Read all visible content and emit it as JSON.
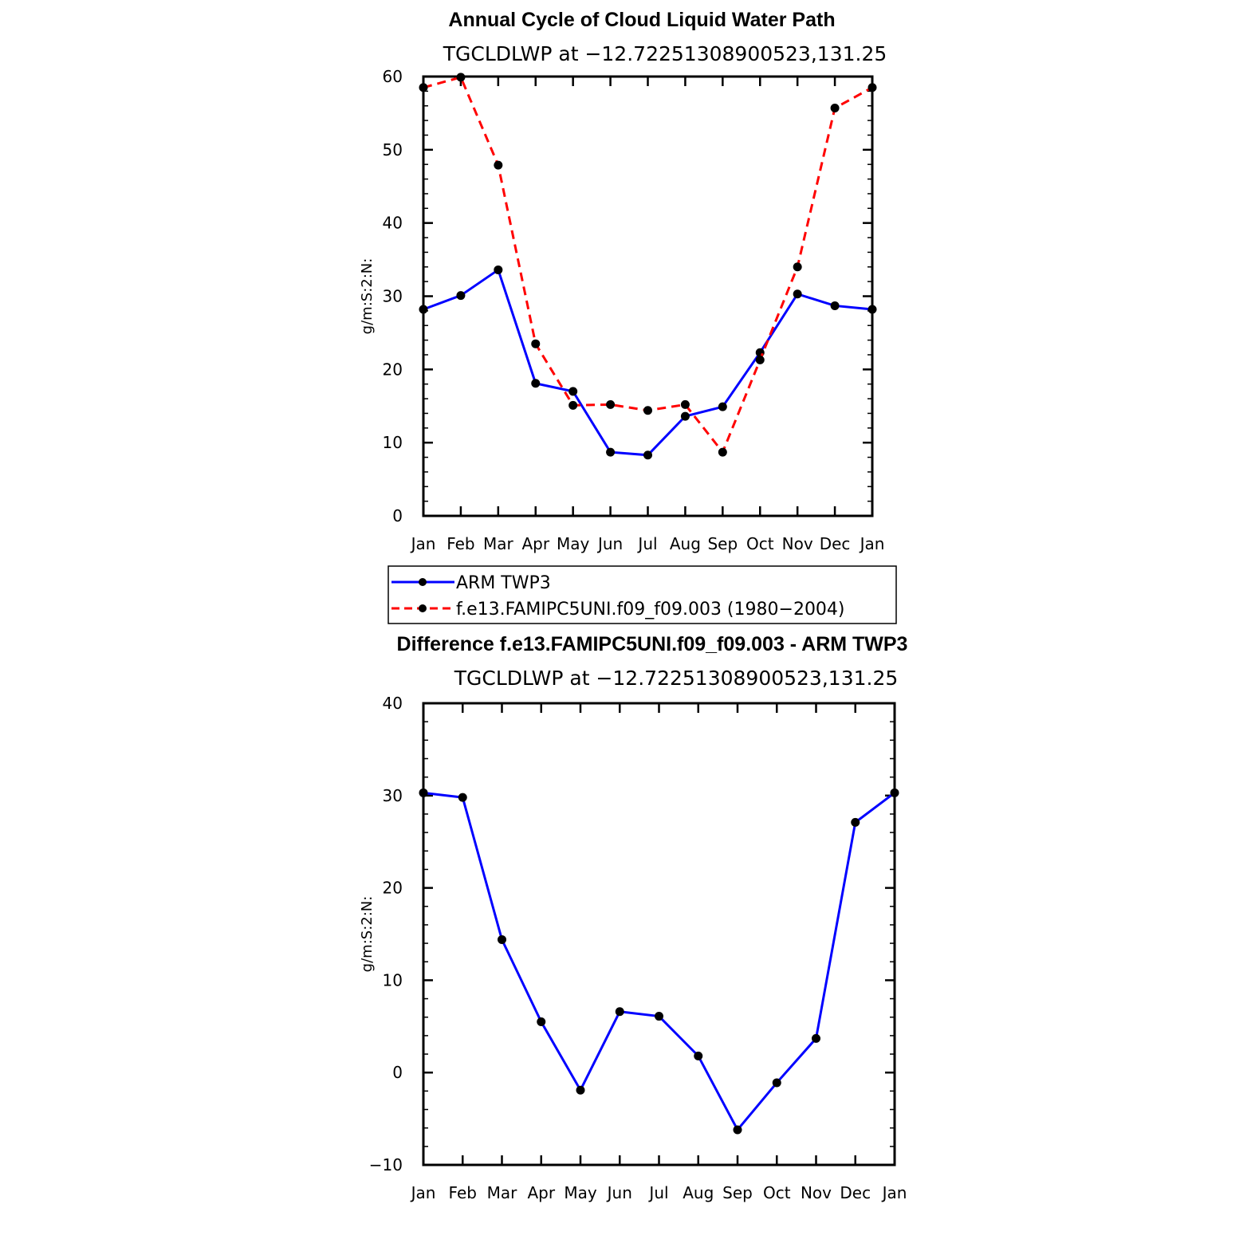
{
  "chart_data": [
    {
      "type": "line",
      "title": "Annual Cycle of Cloud Liquid Water Path",
      "subtitle": "TGCLDLWP at −12.72251308900523,131.25",
      "xlabel": "",
      "ylabel": "g/m:S:2:N:",
      "categories": [
        "Jan",
        "Feb",
        "Mar",
        "Apr",
        "May",
        "Jun",
        "Jul",
        "Aug",
        "Sep",
        "Oct",
        "Nov",
        "Dec",
        "Jan"
      ],
      "ylim": [
        0,
        60
      ],
      "yticks": [
        "0",
        "10",
        "20",
        "30",
        "40",
        "50",
        "60"
      ],
      "series": [
        {
          "name": "ARM TWP3",
          "color": "#0000ff",
          "dashed": false,
          "values": [
            28.2,
            30.1,
            33.6,
            18.1,
            17.0,
            8.7,
            8.3,
            13.6,
            14.9,
            22.3,
            30.3,
            28.7,
            28.2
          ]
        },
        {
          "name": "f.e13.FAMIPC5UNI.f09_f09.003 (1980−2004)",
          "color": "#ff0000",
          "dashed": true,
          "values": [
            58.5,
            59.9,
            47.9,
            23.5,
            15.1,
            15.2,
            14.4,
            15.2,
            8.7,
            21.3,
            34.0,
            55.7,
            58.5
          ]
        }
      ]
    },
    {
      "type": "line",
      "title": "Difference f.e13.FAMIPC5UNI.f09_f09.003 - ARM TWP3",
      "subtitle": "TGCLDLWP at −12.72251308900523,131.25",
      "xlabel": "",
      "ylabel": "g/m:S:2:N:",
      "categories": [
        "Jan",
        "Feb",
        "Mar",
        "Apr",
        "May",
        "Jun",
        "Jul",
        "Aug",
        "Sep",
        "Oct",
        "Nov",
        "Dec",
        "Jan"
      ],
      "ylim": [
        -10,
        40
      ],
      "yticks": [
        "−10",
        "0",
        "10",
        "20",
        "30",
        "40"
      ],
      "series": [
        {
          "name": "Difference",
          "color": "#0000ff",
          "dashed": false,
          "values": [
            30.3,
            29.8,
            14.4,
            5.5,
            -1.9,
            6.6,
            6.1,
            1.8,
            -6.2,
            -1.1,
            3.7,
            27.1,
            30.3
          ]
        }
      ]
    }
  ]
}
